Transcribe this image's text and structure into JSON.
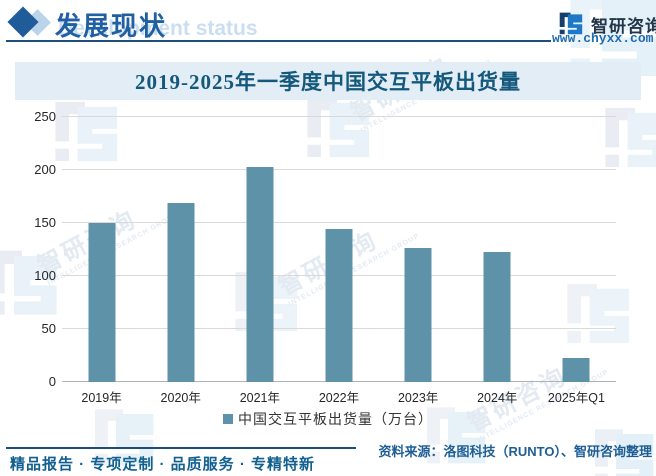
{
  "header": {
    "section_title": "发展现状",
    "section_watermark": "Development status",
    "brand_name": "智研咨询",
    "brand_url": "www.chyxx.com",
    "accent_color": "#215fa3"
  },
  "watermark": {
    "cn": "智研咨询",
    "en": "INTELLIGENCE RESEARCH GROUP"
  },
  "chart_data": {
    "type": "bar",
    "title": "2019-2025年一季度中国交互平板出货量",
    "categories": [
      "2019年",
      "2020年",
      "2021年",
      "2022年",
      "2023年",
      "2024年",
      "2025年Q1"
    ],
    "values": [
      150,
      169,
      203,
      144,
      126,
      123,
      23
    ],
    "series_name": "中国交互平板出货量（万台）",
    "unit": "万台",
    "ylim": [
      0,
      250
    ],
    "yticks": [
      0,
      50,
      100,
      150,
      200,
      250
    ],
    "bar_color": "#5e92a9",
    "grid": "horizontal",
    "legend_position": "bottom"
  },
  "legend": {
    "label": "中国交互平板出货量（万台）"
  },
  "source": {
    "label": "资料来源：洛图科技（RUNTO）、智研咨询整理"
  },
  "footer": {
    "text": "精品报告 · 专项定制 · 品质服务 · 专精特新"
  }
}
